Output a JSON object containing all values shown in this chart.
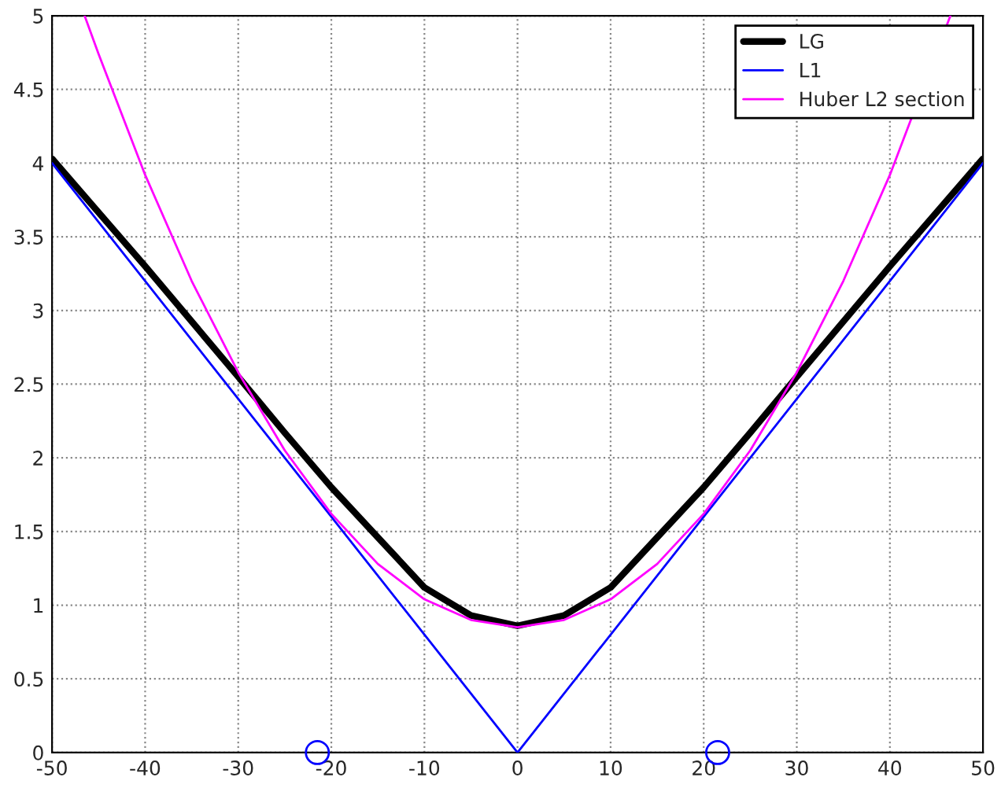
{
  "chart_data": {
    "type": "line",
    "xlim": [
      -50,
      50
    ],
    "ylim": [
      0,
      5
    ],
    "xticks": [
      -50,
      -40,
      -30,
      -20,
      -10,
      0,
      10,
      20,
      30,
      40,
      50
    ],
    "yticks": [
      0,
      0.5,
      1,
      1.5,
      2,
      2.5,
      3,
      3.5,
      4,
      4.5,
      5
    ],
    "grid": true,
    "legend": "top right",
    "marker": "none",
    "line_style": "solid",
    "series": [
      {
        "name": "LG",
        "color": "#000000",
        "x": [
          -50,
          -40,
          -30,
          -25,
          -20,
          -15,
          -10,
          -5,
          0,
          5,
          10,
          15,
          20,
          25,
          30,
          40,
          50
        ],
        "values": [
          4.03,
          3.3,
          2.55,
          2.17,
          1.8,
          1.46,
          1.12,
          0.93,
          0.86,
          0.93,
          1.12,
          1.46,
          1.8,
          2.17,
          2.55,
          3.3,
          4.03
        ]
      },
      {
        "name": "L1",
        "color": "#0000ff",
        "x": [
          -50,
          0,
          50
        ],
        "values": [
          4,
          0,
          4
        ]
      },
      {
        "name": "Huber L2 section",
        "color": "#ff00ff",
        "x": [
          -46.5,
          -45,
          -40,
          -35,
          -30,
          -25,
          -20,
          -15,
          -10,
          -5,
          0,
          5,
          10,
          15,
          20,
          25,
          30,
          35,
          40,
          46.5
        ],
        "values": [
          5,
          4.74,
          3.92,
          3.2,
          2.58,
          2.05,
          1.62,
          1.28,
          1.04,
          0.9,
          0.85,
          0.9,
          1.04,
          1.28,
          1.62,
          2.05,
          2.58,
          3.2,
          3.92,
          5
        ]
      },
      {
        "type": "scatter",
        "color": "#0000ff",
        "marker": "circle",
        "x": [
          -21.5,
          21.5
        ],
        "values": [
          0,
          0
        ]
      }
    ]
  }
}
